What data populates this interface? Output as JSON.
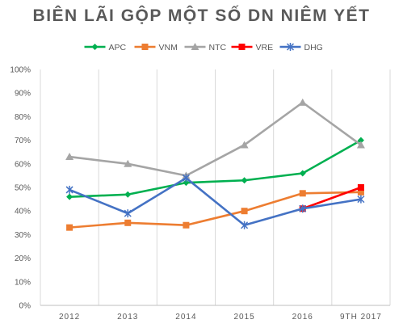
{
  "chart_data": {
    "type": "line",
    "title": "BIÊN LÃI GỘP MỘT SỐ DN NIÊM YẾT",
    "xlabel": "",
    "ylabel": "",
    "categories": [
      "2012",
      "2013",
      "2014",
      "2015",
      "2016",
      "9TH 2017"
    ],
    "ylim": [
      0,
      100
    ],
    "yticks": [
      0,
      10,
      20,
      30,
      40,
      50,
      60,
      70,
      80,
      90,
      100
    ],
    "ytick_suffix": "%",
    "grid": "vertical",
    "legend_position": "top",
    "series": [
      {
        "name": "APC",
        "color": "#00B050",
        "marker": "diamond",
        "values": [
          46,
          47,
          52,
          53,
          56,
          70
        ]
      },
      {
        "name": "VNM",
        "color": "#ED7D31",
        "marker": "square",
        "values": [
          33,
          35,
          34,
          40,
          47.5,
          48
        ]
      },
      {
        "name": "NTC",
        "color": "#A5A5A5",
        "marker": "triangle",
        "values": [
          63,
          60,
          55,
          68,
          86,
          68
        ]
      },
      {
        "name": "VRE",
        "color": "#FF0000",
        "marker": "square",
        "values": [
          null,
          null,
          null,
          null,
          41,
          50
        ]
      },
      {
        "name": "DHG",
        "color": "#4472C4",
        "marker": "star",
        "values": [
          49,
          39,
          54,
          34,
          41,
          45
        ]
      }
    ]
  }
}
